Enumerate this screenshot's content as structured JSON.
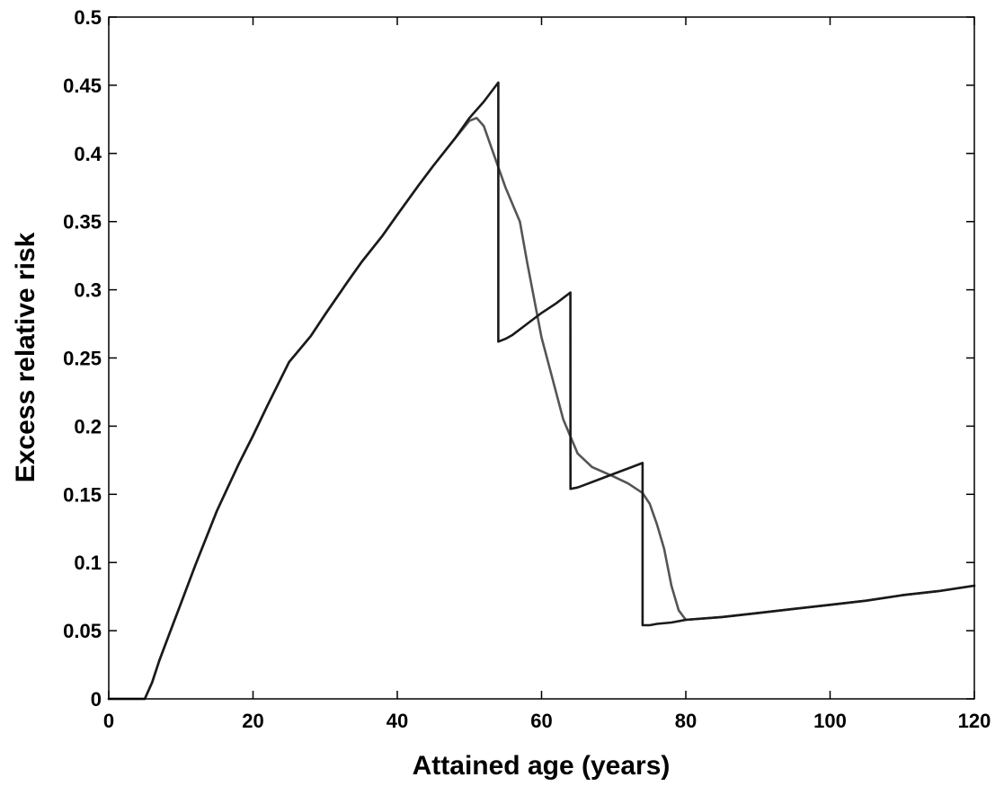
{
  "chart_data": {
    "type": "line",
    "title": "",
    "xlabel": "Attained age (years)",
    "ylabel": "Excess relative risk",
    "xlim": [
      0,
      120
    ],
    "ylim": [
      0,
      0.5
    ],
    "xticks": [
      0,
      20,
      40,
      60,
      80,
      100,
      120
    ],
    "yticks": [
      0,
      0.05,
      0.1,
      0.15,
      0.2,
      0.25,
      0.3,
      0.35,
      0.4,
      0.45,
      0.5
    ],
    "xtick_labels": [
      "0",
      "20",
      "40",
      "60",
      "80",
      "100",
      "120"
    ],
    "ytick_labels": [
      "0",
      "0.05",
      "0.1",
      "0.15",
      "0.2",
      "0.25",
      "0.3",
      "0.35",
      "0.4",
      "0.45",
      "0.5"
    ],
    "grid": false,
    "legend": "none",
    "series": [
      {
        "color": "#1a1a1a",
        "x": [
          0,
          5,
          6,
          7,
          8,
          9,
          10,
          12,
          15,
          18,
          20,
          22,
          25,
          28,
          30,
          33,
          35,
          38,
          40,
          43,
          45,
          48,
          50,
          52,
          54,
          54.01,
          55,
          56,
          58,
          60,
          62,
          64,
          64.01,
          65,
          66,
          68,
          70,
          72,
          74,
          74.01,
          75,
          76,
          78,
          80,
          85,
          90,
          95,
          100,
          105,
          110,
          115,
          120
        ],
        "y": [
          0,
          0,
          0.012,
          0.028,
          0.042,
          0.056,
          0.07,
          0.098,
          0.138,
          0.172,
          0.193,
          0.215,
          0.247,
          0.266,
          0.282,
          0.305,
          0.32,
          0.34,
          0.355,
          0.377,
          0.391,
          0.411,
          0.426,
          0.438,
          0.452,
          0.262,
          0.264,
          0.267,
          0.275,
          0.283,
          0.29,
          0.298,
          0.154,
          0.155,
          0.157,
          0.161,
          0.165,
          0.169,
          0.173,
          0.054,
          0.054,
          0.055,
          0.056,
          0.058,
          0.06,
          0.063,
          0.066,
          0.069,
          0.072,
          0.076,
          0.079,
          0.083
        ]
      },
      {
        "color": "#555555",
        "x": [
          0,
          5,
          6,
          7,
          8,
          9,
          10,
          12,
          15,
          18,
          20,
          22,
          25,
          28,
          30,
          33,
          35,
          38,
          40,
          43,
          45,
          48,
          50,
          51,
          52,
          53,
          55,
          57,
          58,
          60,
          62,
          63,
          65,
          67,
          70,
          72,
          74,
          75,
          76,
          77,
          78,
          79,
          80,
          85,
          90,
          95,
          100,
          105,
          110,
          115,
          120
        ],
        "y": [
          0,
          0,
          0.012,
          0.028,
          0.042,
          0.056,
          0.07,
          0.098,
          0.138,
          0.172,
          0.193,
          0.215,
          0.247,
          0.266,
          0.282,
          0.305,
          0.32,
          0.34,
          0.355,
          0.377,
          0.391,
          0.411,
          0.424,
          0.426,
          0.42,
          0.405,
          0.375,
          0.35,
          0.32,
          0.265,
          0.225,
          0.205,
          0.18,
          0.17,
          0.163,
          0.158,
          0.151,
          0.143,
          0.128,
          0.11,
          0.083,
          0.065,
          0.058,
          0.06,
          0.063,
          0.066,
          0.069,
          0.072,
          0.076,
          0.079,
          0.083
        ]
      }
    ]
  }
}
